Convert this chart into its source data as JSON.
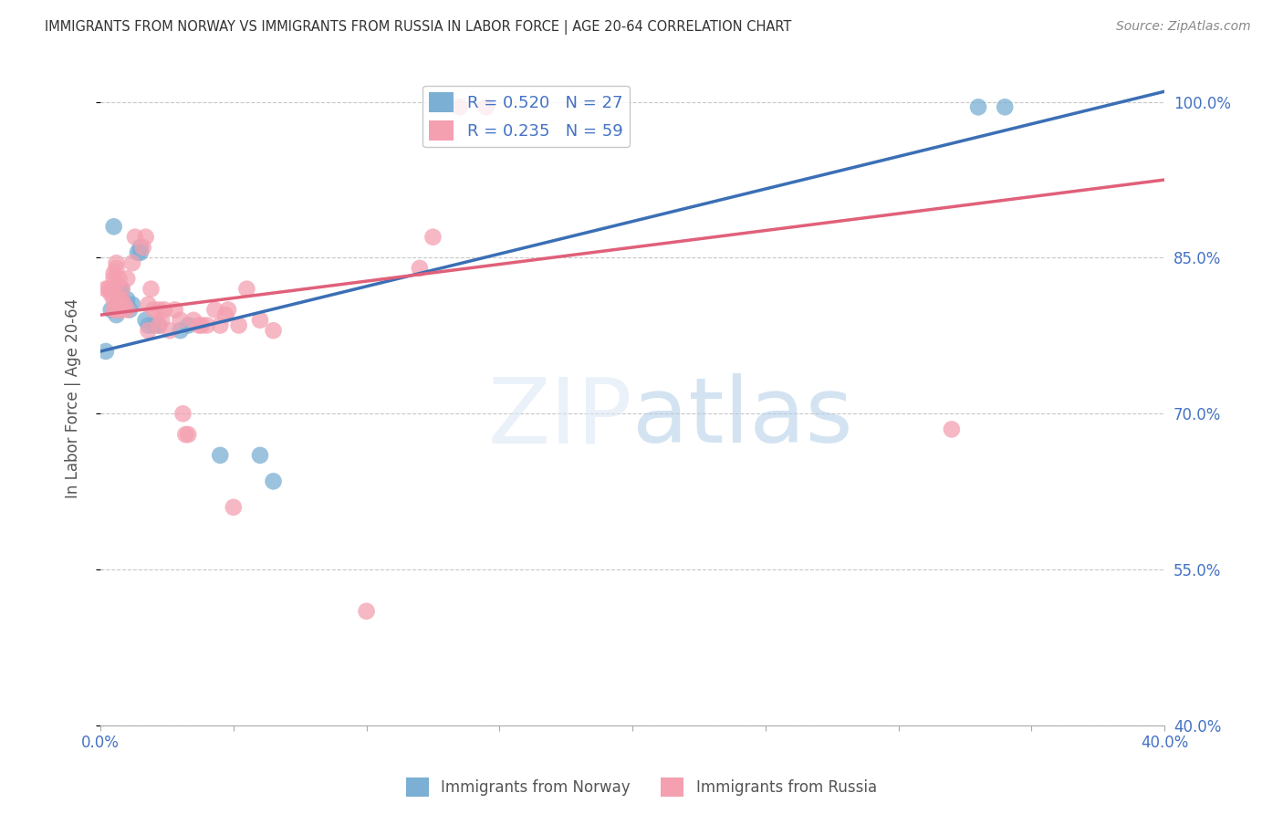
{
  "title": "IMMIGRANTS FROM NORWAY VS IMMIGRANTS FROM RUSSIA IN LABOR FORCE | AGE 20-64 CORRELATION CHART",
  "source": "Source: ZipAtlas.com",
  "ylabel": "In Labor Force | Age 20-64",
  "xlim": [
    0.0,
    0.4
  ],
  "ylim": [
    0.4,
    1.03
  ],
  "yticks": [
    0.4,
    0.55,
    0.7,
    0.85,
    1.0
  ],
  "ytick_labels": [
    "40.0%",
    "55.0%",
    "70.0%",
    "85.0%",
    "100.0%"
  ],
  "xticks": [
    0.0,
    0.05,
    0.1,
    0.15,
    0.2,
    0.25,
    0.3,
    0.35,
    0.4
  ],
  "xtick_labels": [
    "0.0%",
    "",
    "",
    "",
    "",
    "",
    "",
    "",
    "40.0%"
  ],
  "norway_R": 0.52,
  "norway_N": 27,
  "russia_R": 0.235,
  "russia_N": 59,
  "norway_color": "#7bafd4",
  "russia_color": "#f4a0b0",
  "norway_line_color": "#3b6fb5",
  "russia_line_color": "#e0607a",
  "norway_line": [
    0.0,
    0.76,
    0.4,
    1.01
  ],
  "russia_line": [
    0.0,
    0.795,
    0.4,
    0.925
  ],
  "norway_points": [
    [
      0.002,
      0.76
    ],
    [
      0.004,
      0.8
    ],
    [
      0.005,
      0.88
    ],
    [
      0.006,
      0.795
    ],
    [
      0.007,
      0.8
    ],
    [
      0.007,
      0.82
    ],
    [
      0.008,
      0.81
    ],
    [
      0.008,
      0.82
    ],
    [
      0.009,
      0.805
    ],
    [
      0.01,
      0.805
    ],
    [
      0.01,
      0.81
    ],
    [
      0.011,
      0.8
    ],
    [
      0.012,
      0.805
    ],
    [
      0.014,
      0.855
    ],
    [
      0.015,
      0.855
    ],
    [
      0.015,
      0.86
    ],
    [
      0.017,
      0.79
    ],
    [
      0.018,
      0.785
    ],
    [
      0.02,
      0.785
    ],
    [
      0.022,
      0.785
    ],
    [
      0.03,
      0.78
    ],
    [
      0.033,
      0.785
    ],
    [
      0.045,
      0.66
    ],
    [
      0.06,
      0.66
    ],
    [
      0.065,
      0.635
    ],
    [
      0.33,
      0.995
    ],
    [
      0.34,
      0.995
    ]
  ],
  "russia_points": [
    [
      0.002,
      0.82
    ],
    [
      0.003,
      0.82
    ],
    [
      0.004,
      0.815
    ],
    [
      0.004,
      0.82
    ],
    [
      0.005,
      0.8
    ],
    [
      0.005,
      0.81
    ],
    [
      0.005,
      0.83
    ],
    [
      0.005,
      0.835
    ],
    [
      0.006,
      0.8
    ],
    [
      0.006,
      0.805
    ],
    [
      0.006,
      0.825
    ],
    [
      0.006,
      0.84
    ],
    [
      0.006,
      0.845
    ],
    [
      0.007,
      0.8
    ],
    [
      0.007,
      0.81
    ],
    [
      0.007,
      0.83
    ],
    [
      0.008,
      0.8
    ],
    [
      0.008,
      0.81
    ],
    [
      0.008,
      0.82
    ],
    [
      0.009,
      0.805
    ],
    [
      0.01,
      0.8
    ],
    [
      0.01,
      0.83
    ],
    [
      0.012,
      0.845
    ],
    [
      0.013,
      0.87
    ],
    [
      0.016,
      0.86
    ],
    [
      0.017,
      0.87
    ],
    [
      0.018,
      0.78
    ],
    [
      0.018,
      0.805
    ],
    [
      0.019,
      0.82
    ],
    [
      0.02,
      0.8
    ],
    [
      0.022,
      0.785
    ],
    [
      0.022,
      0.8
    ],
    [
      0.023,
      0.79
    ],
    [
      0.024,
      0.8
    ],
    [
      0.026,
      0.78
    ],
    [
      0.028,
      0.8
    ],
    [
      0.03,
      0.79
    ],
    [
      0.031,
      0.7
    ],
    [
      0.032,
      0.68
    ],
    [
      0.033,
      0.68
    ],
    [
      0.035,
      0.79
    ],
    [
      0.037,
      0.785
    ],
    [
      0.038,
      0.785
    ],
    [
      0.04,
      0.785
    ],
    [
      0.043,
      0.8
    ],
    [
      0.045,
      0.785
    ],
    [
      0.047,
      0.795
    ],
    [
      0.048,
      0.8
    ],
    [
      0.05,
      0.61
    ],
    [
      0.052,
      0.785
    ],
    [
      0.055,
      0.82
    ],
    [
      0.06,
      0.79
    ],
    [
      0.065,
      0.78
    ],
    [
      0.1,
      0.51
    ],
    [
      0.12,
      0.84
    ],
    [
      0.125,
      0.87
    ],
    [
      0.135,
      0.995
    ],
    [
      0.145,
      0.995
    ],
    [
      0.32,
      0.685
    ]
  ],
  "background_color": "#ffffff",
  "grid_color": "#c8c8c8",
  "title_color": "#333333",
  "axis_label_color": "#555555",
  "tick_color": "#4472c4",
  "source_color": "#888888"
}
